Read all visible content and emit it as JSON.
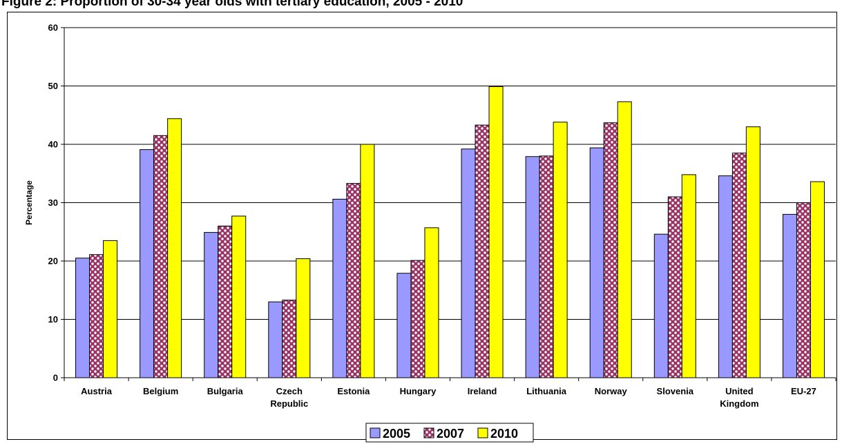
{
  "title": "Figure 2: Proportion of 30-34 year olds with tertiary education, 2005 - 2010",
  "chart_data": {
    "type": "bar",
    "title": "Figure 2: Proportion of 30-34 year olds with tertiary education, 2005 - 2010",
    "ylabel": "Percentage",
    "xlabel": "",
    "ylim": [
      0,
      60
    ],
    "yticks": [
      0,
      10,
      20,
      30,
      40,
      50,
      60
    ],
    "grid": true,
    "legend_position": "bottom",
    "categories": [
      [
        "Austria"
      ],
      [
        "Belgium"
      ],
      [
        "Bulgaria"
      ],
      [
        "Czech",
        "Republic"
      ],
      [
        "Estonia"
      ],
      [
        "Hungary"
      ],
      [
        "Ireland"
      ],
      [
        "Lithuania"
      ],
      [
        "Norway"
      ],
      [
        "Slovenia"
      ],
      [
        "United",
        "Kingdom"
      ],
      [
        "EU-27"
      ]
    ],
    "series": [
      {
        "name": "2005",
        "color": "#9999ff",
        "pattern": "solid",
        "values": [
          20.5,
          39.1,
          24.9,
          13.0,
          30.6,
          17.9,
          39.2,
          37.9,
          39.4,
          24.6,
          34.6,
          28.0
        ]
      },
      {
        "name": "2007",
        "color": "#993366",
        "pattern": "checker",
        "values": [
          21.1,
          41.5,
          26.0,
          13.3,
          33.3,
          20.1,
          43.3,
          38.0,
          43.7,
          31.0,
          38.5,
          30.0
        ]
      },
      {
        "name": "2010",
        "color": "#ffff00",
        "pattern": "solid",
        "values": [
          23.5,
          44.4,
          27.7,
          20.4,
          40.0,
          25.7,
          49.9,
          43.8,
          47.3,
          34.8,
          43.0,
          33.6
        ]
      }
    ]
  }
}
